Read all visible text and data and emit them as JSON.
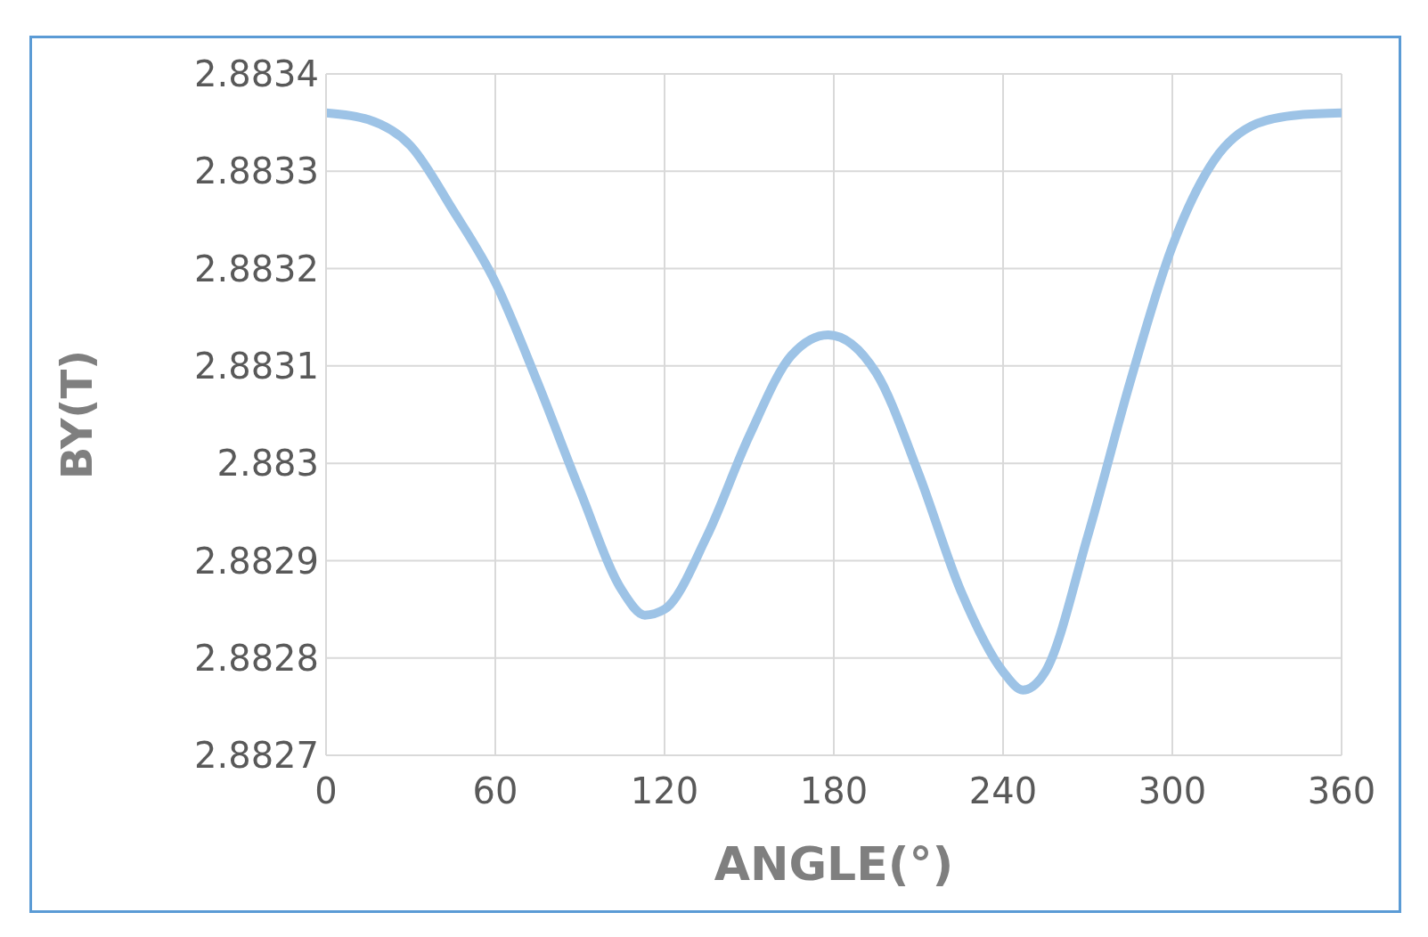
{
  "chart_data": {
    "type": "line",
    "xlabel": "ANGLE(°)",
    "ylabel": "BY(T)",
    "x": [
      0,
      15,
      30,
      45,
      60,
      75,
      90,
      105,
      113,
      120,
      135,
      150,
      165,
      178,
      195,
      210,
      225,
      240,
      247,
      255,
      270,
      285,
      300,
      315,
      330,
      345,
      360
    ],
    "series": [
      {
        "color": "#9dc3e6",
        "values": [
          2.88336,
          2.883353,
          2.883326,
          2.88326,
          2.883186,
          2.883083,
          2.882972,
          2.882869,
          2.882844,
          2.88285,
          2.882925,
          2.883028,
          2.883111,
          2.883132,
          2.883093,
          2.88299,
          2.882869,
          2.882786,
          2.882767,
          2.882786,
          2.882925,
          2.883083,
          2.883223,
          2.883312,
          2.883349,
          2.883358,
          2.88336
        ]
      }
    ],
    "xlim": [
      0,
      360
    ],
    "xticks": [
      0,
      60,
      120,
      180,
      240,
      300,
      360
    ],
    "ylim": [
      2.8827,
      2.8834
    ],
    "yticks": [
      2.8827,
      2.8828,
      2.8829,
      2.883,
      2.8831,
      2.8832,
      2.8833,
      2.8834
    ],
    "grid": true,
    "legend": false,
    "marker": "none",
    "line_style": "solid"
  }
}
